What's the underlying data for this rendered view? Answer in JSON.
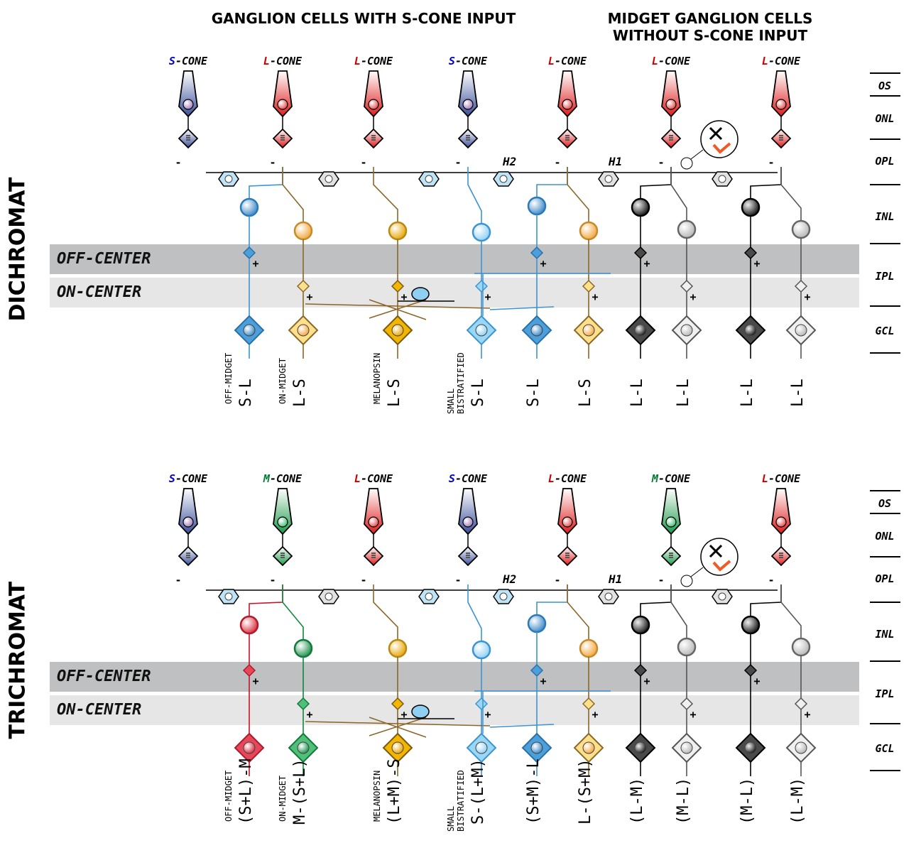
{
  "headers": {
    "s_cone_group": "GANGLION CELLS WITH S-CONE INPUT",
    "midget_group_line1": "MIDGET GANGLION CELLS",
    "midget_group_line2": "WITHOUT S-CONE INPUT"
  },
  "bands": {
    "off": "OFF-CENTER",
    "on": "ON-CENTER"
  },
  "horizontal_cells": {
    "h2": "H2",
    "h1": "H1"
  },
  "layers": [
    "OS",
    "ONL",
    "OPL",
    "INL",
    "IPL",
    "GCL"
  ],
  "cone_suffix": "-CONE",
  "colors": {
    "S": "#0000cc",
    "L": "#cc0000",
    "M": "#007a33",
    "band_off": "#bfc0c2",
    "band_on": "#e6e6e7"
  },
  "panels": [
    {
      "title": "DICHROMAT",
      "cones": [
        "S",
        "L",
        "L",
        "S",
        "L",
        "L",
        "L"
      ],
      "cells": [
        {
          "type": "OFF-MIDGET",
          "label": "S-L",
          "style": "blue"
        },
        {
          "type": "ON-MIDGET",
          "label": "L-S",
          "style": "yellow"
        },
        {
          "type": "MELANOPSIN",
          "label": "L-S",
          "style": "gold"
        },
        {
          "type": "SMALL\nBISTRATIFIED",
          "label": "S-L",
          "style": "lightblue"
        },
        {
          "type": "",
          "label": "S-L",
          "style": "blue"
        },
        {
          "type": "",
          "label": "L-S",
          "style": "yellow"
        },
        {
          "type": "",
          "label": "L-L",
          "style": "dark"
        },
        {
          "type": "",
          "label": "L-L",
          "style": "light"
        },
        {
          "type": "",
          "label": "L-L",
          "style": "dark"
        },
        {
          "type": "",
          "label": "L-L",
          "style": "light"
        }
      ]
    },
    {
      "title": "TRICHROMAT",
      "cones": [
        "S",
        "M",
        "L",
        "S",
        "L",
        "M",
        "L"
      ],
      "cells": [
        {
          "type": "OFF-MIDGET",
          "label": "(S+L)-M",
          "style": "red"
        },
        {
          "type": "ON-MIDGET",
          "label": "M-(S+L)",
          "style": "green"
        },
        {
          "type": "MELANOPSIN",
          "label": "(L+M)-S",
          "style": "gold"
        },
        {
          "type": "SMALL\nBISTRATIFIED",
          "label": "S-(L+M)",
          "style": "lightblue"
        },
        {
          "type": "",
          "label": "(S+M)-L",
          "style": "blue"
        },
        {
          "type": "",
          "label": "L-(S+M)",
          "style": "yellow"
        },
        {
          "type": "",
          "label": "(L-M)",
          "style": "dark"
        },
        {
          "type": "",
          "label": "(M-L)",
          "style": "light"
        },
        {
          "type": "",
          "label": "(M-L)",
          "style": "dark"
        },
        {
          "type": "",
          "label": "(L-M)",
          "style": "light"
        }
      ]
    }
  ]
}
